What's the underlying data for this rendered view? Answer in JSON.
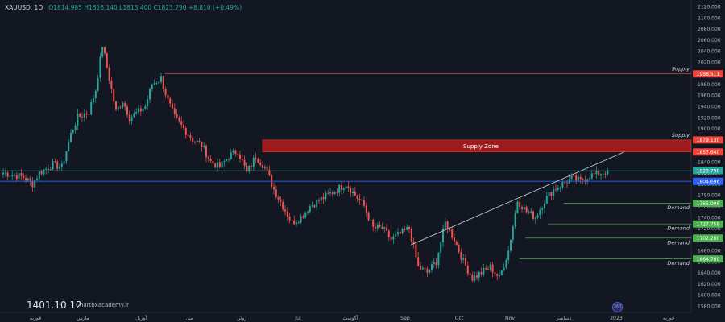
{
  "header": {
    "symbol": "XAUUSD, 1D",
    "ohlc": "O1814.985 H1826.140 L1813.400 C1823.790 +8.810 (+0.49%)"
  },
  "watermark": {
    "date_text": "1401.10.12",
    "website": "Chartbxacademy.ir",
    "tv_badge": "360"
  },
  "colors": {
    "background": "#131722",
    "up": "#26a69a",
    "down": "#ef5350",
    "supply_zone": "#b71c1c",
    "demand_line": "#4caf50",
    "current_price_tag": "#26a69a",
    "blue_line": "#2962ff"
  },
  "chart_data": {
    "type": "candlestick",
    "symbol": "XAUUSD",
    "timeframe": "1D",
    "ylim": [
      1575,
      2125
    ],
    "y_ticks": [
      "2120.000",
      "2100.000",
      "2080.000",
      "2060.000",
      "2040.000",
      "2020.000",
      "2000.000",
      "1980.000",
      "1960.000",
      "1940.000",
      "1920.000",
      "1900.000",
      "1880.000",
      "1860.000",
      "1840.000",
      "1820.000",
      "1800.000",
      "1780.000",
      "1760.000",
      "1740.000",
      "1720.000",
      "1700.000",
      "1680.000",
      "1660.000",
      "1640.000",
      "1620.000",
      "1600.000",
      "1580.000"
    ],
    "x_labels": [
      "فوریه",
      "مارس",
      "آوریل",
      "می",
      "ژوئن",
      "Jul",
      "آگوست",
      "Sep",
      "Oct",
      "Nov",
      "دسامبر",
      "2023",
      "فوریه"
    ],
    "price_tags": [
      {
        "value": 1998.511,
        "label": "1998.511",
        "color": "#f44336"
      },
      {
        "value": 1879.13,
        "label": "1879.130",
        "color": "#f44336"
      },
      {
        "value": 1857.64,
        "label": "1857.640",
        "color": "#f44336"
      },
      {
        "value": 1823.79,
        "label": "1823.790",
        "color": "#26a69a"
      },
      {
        "value": 1804.696,
        "label": "1804.696",
        "color": "#2962ff"
      },
      {
        "value": 1765.096,
        "label": "1765.096",
        "color": "#4caf50"
      },
      {
        "value": 1727.758,
        "label": "1727.758",
        "color": "#4caf50"
      },
      {
        "value": 1702.26,
        "label": "1702.260",
        "color": "#4caf50"
      },
      {
        "value": 1664.76,
        "label": "1664.760",
        "color": "#4caf50"
      }
    ],
    "annotations": {
      "supply_labels": [
        "Supply",
        "Supply"
      ],
      "supply_zone_label": "Supply Zone",
      "demand_labels": [
        "Demand",
        "Demand",
        "Demand",
        "Demand"
      ]
    },
    "waypoints": [
      [
        0,
        1820
      ],
      [
        6,
        1815
      ],
      [
        9,
        1812
      ],
      [
        13,
        1800
      ],
      [
        16,
        1820
      ],
      [
        22,
        1835
      ],
      [
        26,
        1830
      ],
      [
        30,
        1890
      ],
      [
        33,
        1920
      ],
      [
        38,
        1930
      ],
      [
        41,
        1970
      ],
      [
        44,
        2050
      ],
      [
        47,
        1990
      ],
      [
        50,
        1930
      ],
      [
        53,
        1950
      ],
      [
        56,
        1920
      ],
      [
        60,
        1930
      ],
      [
        63,
        1940
      ],
      [
        66,
        1980
      ],
      [
        70,
        1990
      ],
      [
        73,
        1950
      ],
      [
        76,
        1920
      ],
      [
        80,
        1900
      ],
      [
        84,
        1880
      ],
      [
        88,
        1870
      ],
      [
        92,
        1840
      ],
      [
        96,
        1830
      ],
      [
        100,
        1850
      ],
      [
        104,
        1860
      ],
      [
        108,
        1820
      ],
      [
        112,
        1850
      ],
      [
        116,
        1830
      ],
      [
        120,
        1790
      ],
      [
        124,
        1760
      ],
      [
        128,
        1730
      ],
      [
        132,
        1740
      ],
      [
        136,
        1760
      ],
      [
        140,
        1770
      ],
      [
        144,
        1780
      ],
      [
        148,
        1790
      ],
      [
        152,
        1800
      ],
      [
        156,
        1780
      ],
      [
        160,
        1760
      ],
      [
        164,
        1720
      ],
      [
        168,
        1720
      ],
      [
        172,
        1700
      ],
      [
        176,
        1710
      ],
      [
        180,
        1720
      ],
      [
        184,
        1650
      ],
      [
        188,
        1640
      ],
      [
        192,
        1660
      ],
      [
        196,
        1730
      ],
      [
        200,
        1700
      ],
      [
        204,
        1660
      ],
      [
        208,
        1630
      ],
      [
        212,
        1640
      ],
      [
        216,
        1650
      ],
      [
        220,
        1630
      ],
      [
        224,
        1680
      ],
      [
        228,
        1770
      ],
      [
        232,
        1750
      ],
      [
        236,
        1740
      ],
      [
        240,
        1770
      ],
      [
        244,
        1790
      ],
      [
        248,
        1800
      ],
      [
        252,
        1810
      ],
      [
        256,
        1805
      ],
      [
        260,
        1815
      ],
      [
        264,
        1818
      ],
      [
        268,
        1823.79
      ]
    ],
    "series_note": ""
  }
}
